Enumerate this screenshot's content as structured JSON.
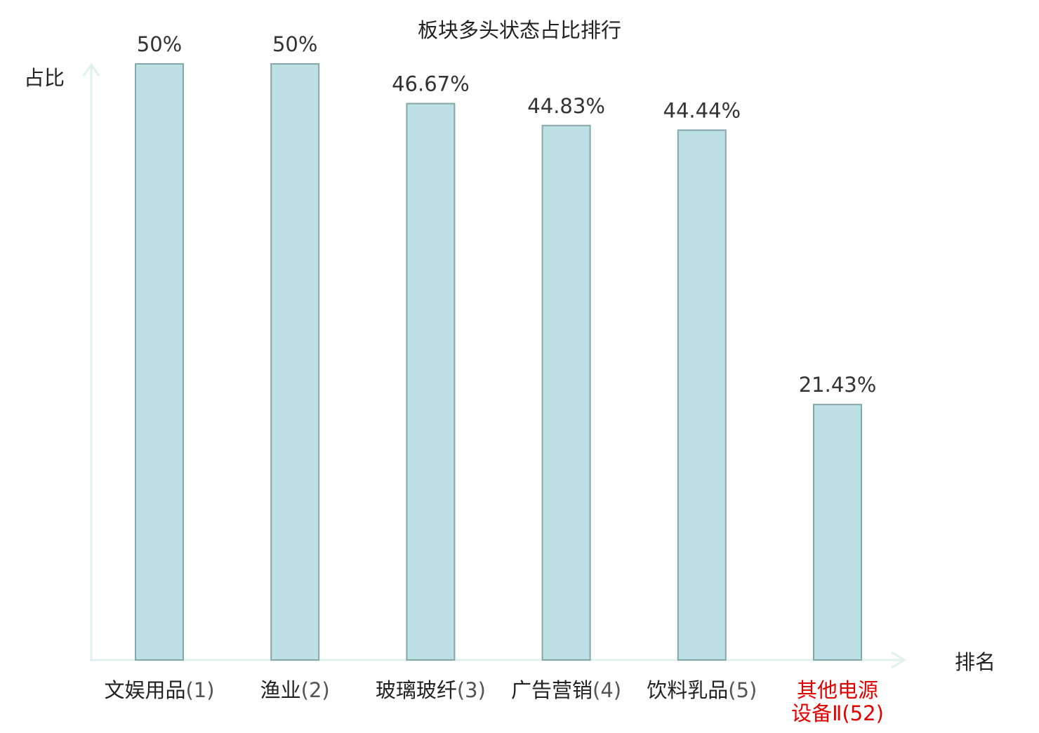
{
  "chart_data": {
    "type": "bar",
    "title": "板块多头状态占比排行",
    "ylabel": "占比",
    "xlabel": "排名",
    "ylim": [
      0,
      50
    ],
    "categories": [
      {
        "name": "文娱用品",
        "rank": "(1)"
      },
      {
        "name": "渔业",
        "rank": "(2)"
      },
      {
        "name": "玻璃玻纤",
        "rank": "(3)"
      },
      {
        "name": "广告营销",
        "rank": "(4)"
      },
      {
        "name": "饮料乳品",
        "rank": "(5)"
      },
      {
        "name_lines": [
          "其他电源",
          "设备Ⅱ"
        ],
        "rank": "(52)",
        "highlight": true
      }
    ],
    "values": [
      50,
      50,
      46.67,
      44.83,
      44.44,
      21.43
    ],
    "value_labels": [
      "50%",
      "50%",
      "46.67%",
      "44.83%",
      "44.44%",
      "21.43%"
    ],
    "grid": false,
    "colors": {
      "bar_fill": "#bce0e3",
      "bar_stroke": "#86a7aa",
      "axis": "#dff2ef",
      "text": "#222222",
      "label_text": "#333333",
      "rank_text": "#555555",
      "highlight": "#e00000"
    }
  }
}
